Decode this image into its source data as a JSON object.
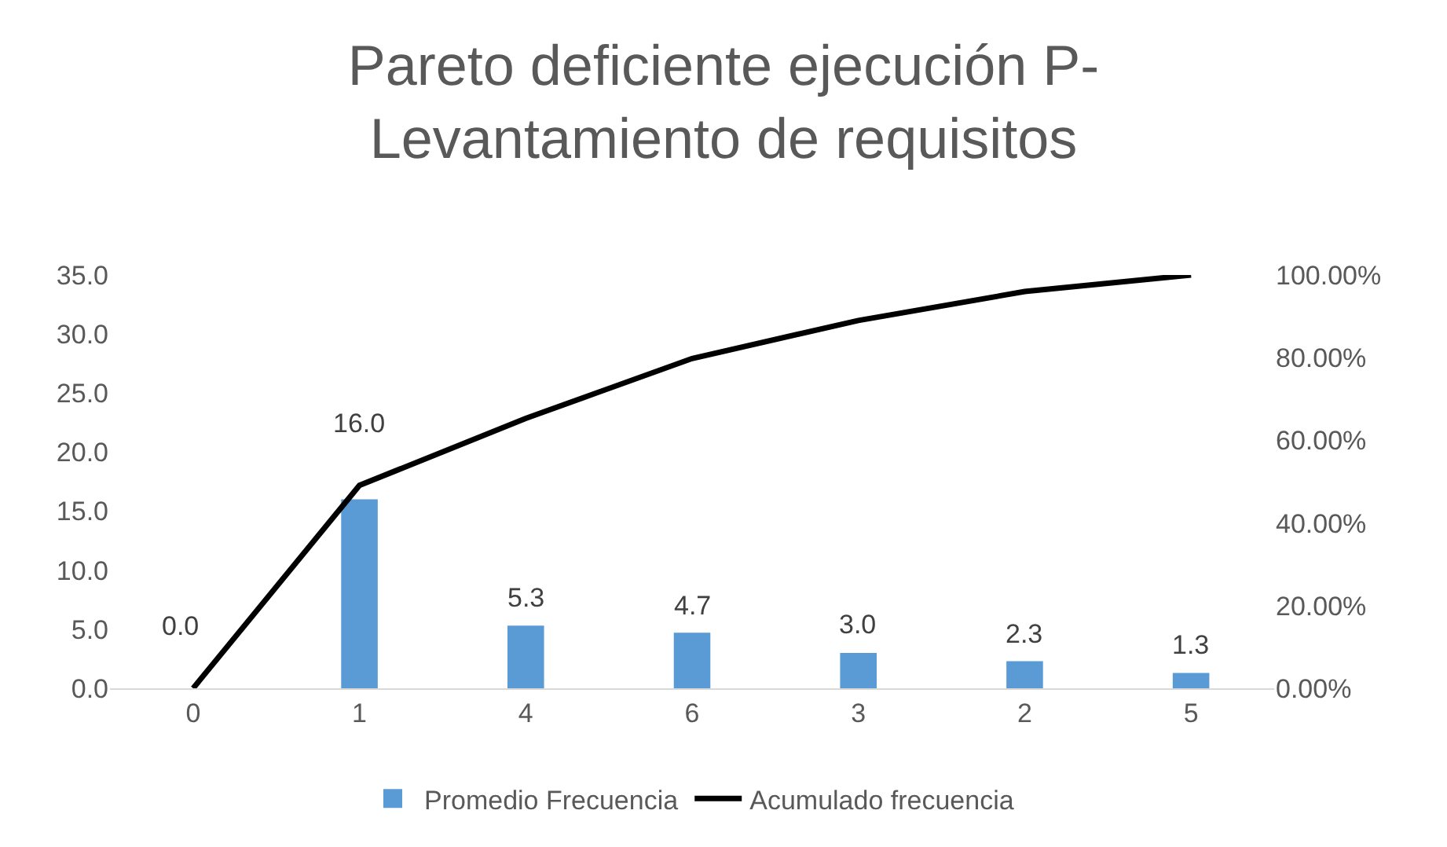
{
  "chart_data": {
    "type": "bar",
    "title": "Pareto deficiente ejecución P-\nLevantamiento de requisitos",
    "categories": [
      "0",
      "1",
      "4",
      "6",
      "3",
      "2",
      "5"
    ],
    "series": [
      {
        "name": "Promedio Frecuencia",
        "color": "#5b9bd5",
        "values": [
          0,
          16,
          5.3,
          4.7,
          3,
          2.3,
          1.3
        ],
        "value_labels": [
          "0.0",
          "16.0",
          "5.3",
          "4.7",
          "3.0",
          "2.3",
          "1.3"
        ]
      },
      {
        "name": "Acumulado frecuencia",
        "type": "line",
        "axis": "y2",
        "color": "#000000",
        "values": [
          0,
          49.1,
          65.3,
          79.8,
          89.0,
          96.0,
          100
        ]
      }
    ],
    "ylim": [
      0,
      35
    ],
    "yticks": [
      {
        "value": 0,
        "label": "0.0"
      },
      {
        "value": 5,
        "label": "5.0"
      },
      {
        "value": 10,
        "label": "10.0"
      },
      {
        "value": 15,
        "label": "15.0"
      },
      {
        "value": 20,
        "label": "20.0"
      },
      {
        "value": 25,
        "label": "25.0"
      },
      {
        "value": 30,
        "label": "30.0"
      },
      {
        "value": 35,
        "label": "35.0"
      }
    ],
    "y2lim": [
      0,
      100
    ],
    "y2ticks": [
      {
        "value": 0,
        "label": "0.00%"
      },
      {
        "value": 20,
        "label": "20.00%"
      },
      {
        "value": 40,
        "label": "40.00%"
      },
      {
        "value": 60,
        "label": "60.00%"
      },
      {
        "value": 80,
        "label": "80.00%"
      },
      {
        "value": 100,
        "label": "100.00%"
      }
    ],
    "legend": "bottom",
    "marker": "none",
    "line_style": "solid"
  }
}
